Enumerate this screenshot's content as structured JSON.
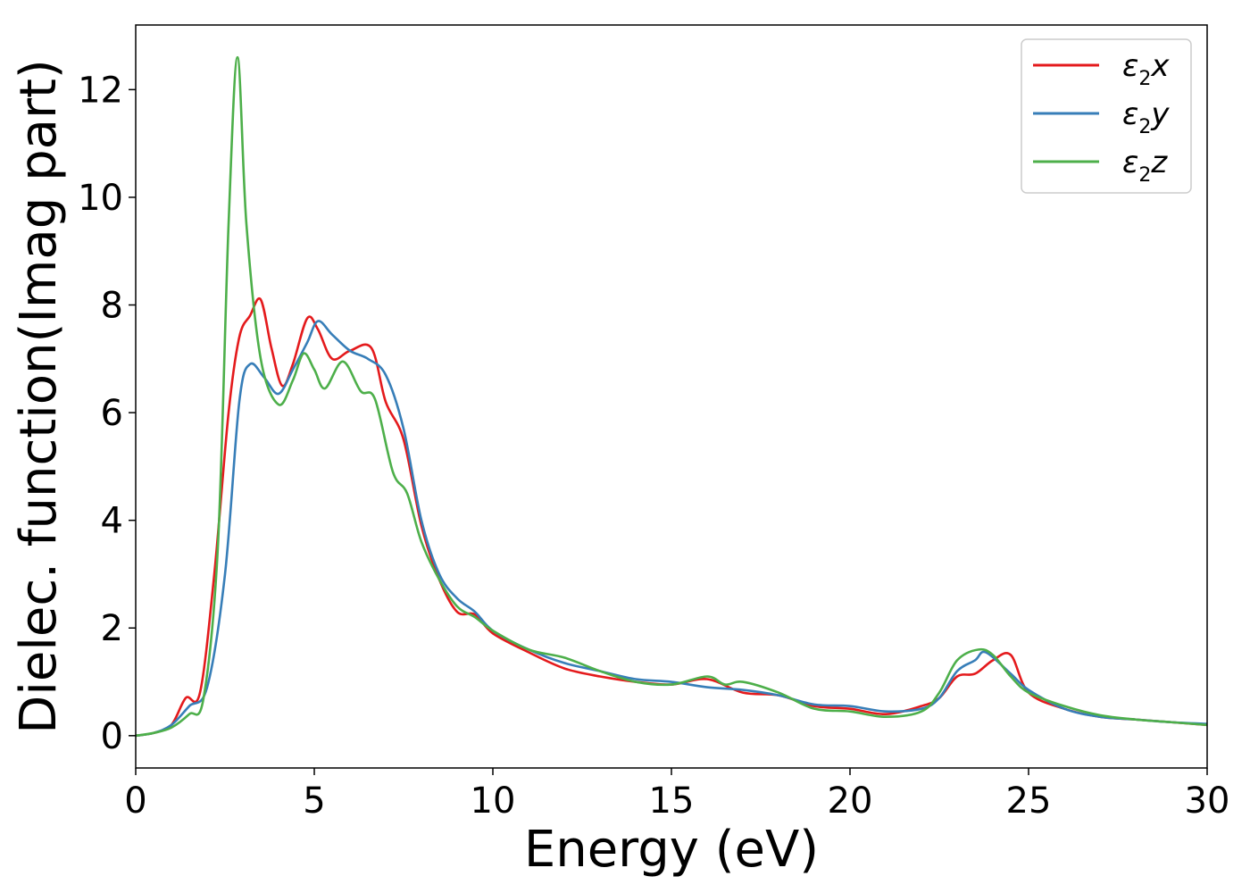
{
  "chart_data": {
    "type": "line",
    "title": "",
    "xlabel": "Energy (eV)",
    "ylabel": "Dielec. function(Imag part)",
    "xlim": [
      0,
      30
    ],
    "ylim": [
      -0.6,
      13.2
    ],
    "xticks": [
      0,
      5,
      10,
      15,
      20,
      25,
      30
    ],
    "yticks": [
      0,
      2,
      4,
      6,
      8,
      10,
      12
    ],
    "grid": false,
    "legend_position": "top-right",
    "series": [
      {
        "name": "ε2x",
        "symbol": "ε",
        "subscript": "2",
        "suffix": "x",
        "color": "#e41a1c",
        "points": [
          [
            0,
            0
          ],
          [
            0.5,
            0.05
          ],
          [
            1.0,
            0.2
          ],
          [
            1.4,
            0.7
          ],
          [
            1.8,
            0.8
          ],
          [
            2.2,
            3.0
          ],
          [
            2.6,
            6.0
          ],
          [
            2.9,
            7.4
          ],
          [
            3.2,
            7.8
          ],
          [
            3.5,
            8.1
          ],
          [
            3.8,
            7.2
          ],
          [
            4.1,
            6.5
          ],
          [
            4.4,
            6.9
          ],
          [
            4.8,
            7.75
          ],
          [
            5.1,
            7.55
          ],
          [
            5.5,
            7.0
          ],
          [
            6.0,
            7.15
          ],
          [
            6.6,
            7.2
          ],
          [
            7.0,
            6.2
          ],
          [
            7.5,
            5.5
          ],
          [
            8.0,
            3.9
          ],
          [
            8.5,
            2.9
          ],
          [
            9.0,
            2.3
          ],
          [
            9.5,
            2.25
          ],
          [
            10.0,
            1.9
          ],
          [
            11.0,
            1.55
          ],
          [
            12.0,
            1.25
          ],
          [
            13.0,
            1.1
          ],
          [
            14.0,
            1.0
          ],
          [
            15.0,
            0.95
          ],
          [
            16.0,
            1.05
          ],
          [
            17.0,
            0.8
          ],
          [
            18.0,
            0.75
          ],
          [
            19.0,
            0.55
          ],
          [
            20.0,
            0.5
          ],
          [
            21.0,
            0.4
          ],
          [
            22.0,
            0.55
          ],
          [
            22.5,
            0.7
          ],
          [
            23.0,
            1.1
          ],
          [
            23.5,
            1.15
          ],
          [
            24.0,
            1.4
          ],
          [
            24.5,
            1.5
          ],
          [
            25.0,
            0.8
          ],
          [
            26.0,
            0.5
          ],
          [
            27.0,
            0.35
          ],
          [
            28.0,
            0.3
          ],
          [
            29.0,
            0.25
          ],
          [
            30.0,
            0.2
          ]
        ]
      },
      {
        "name": "ε2y",
        "symbol": "ε",
        "subscript": "2",
        "suffix": "y",
        "color": "#377eb8",
        "points": [
          [
            0,
            0
          ],
          [
            0.5,
            0.05
          ],
          [
            1.0,
            0.2
          ],
          [
            1.5,
            0.55
          ],
          [
            2.0,
            0.9
          ],
          [
            2.5,
            3.0
          ],
          [
            2.9,
            6.2
          ],
          [
            3.2,
            6.9
          ],
          [
            3.6,
            6.65
          ],
          [
            4.0,
            6.35
          ],
          [
            4.4,
            6.8
          ],
          [
            4.8,
            7.3
          ],
          [
            5.1,
            7.7
          ],
          [
            5.5,
            7.45
          ],
          [
            6.0,
            7.15
          ],
          [
            6.5,
            7.0
          ],
          [
            7.0,
            6.7
          ],
          [
            7.5,
            5.7
          ],
          [
            8.0,
            4.0
          ],
          [
            8.5,
            3.0
          ],
          [
            9.0,
            2.55
          ],
          [
            9.5,
            2.3
          ],
          [
            10.0,
            1.95
          ],
          [
            11.0,
            1.6
          ],
          [
            12.0,
            1.35
          ],
          [
            13.0,
            1.2
          ],
          [
            14.0,
            1.05
          ],
          [
            15.0,
            1.0
          ],
          [
            16.0,
            0.9
          ],
          [
            17.0,
            0.85
          ],
          [
            18.0,
            0.75
          ],
          [
            19.0,
            0.58
          ],
          [
            20.0,
            0.55
          ],
          [
            21.0,
            0.45
          ],
          [
            22.0,
            0.5
          ],
          [
            22.5,
            0.7
          ],
          [
            23.0,
            1.2
          ],
          [
            23.5,
            1.4
          ],
          [
            23.8,
            1.55
          ],
          [
            24.5,
            1.15
          ],
          [
            25.0,
            0.85
          ],
          [
            26.0,
            0.5
          ],
          [
            27.0,
            0.35
          ],
          [
            28.0,
            0.3
          ],
          [
            29.0,
            0.25
          ],
          [
            30.0,
            0.22
          ]
        ]
      },
      {
        "name": "ε2z",
        "symbol": "ε",
        "subscript": "2",
        "suffix": "z",
        "color": "#4daf4a",
        "points": [
          [
            0,
            0
          ],
          [
            0.5,
            0.05
          ],
          [
            1.0,
            0.15
          ],
          [
            1.5,
            0.4
          ],
          [
            1.9,
            0.7
          ],
          [
            2.3,
            3.5
          ],
          [
            2.6,
            9.5
          ],
          [
            2.85,
            12.6
          ],
          [
            3.1,
            9.5
          ],
          [
            3.5,
            7.0
          ],
          [
            4.0,
            6.15
          ],
          [
            4.4,
            6.6
          ],
          [
            4.7,
            7.1
          ],
          [
            5.0,
            6.8
          ],
          [
            5.3,
            6.45
          ],
          [
            5.8,
            6.95
          ],
          [
            6.3,
            6.4
          ],
          [
            6.7,
            6.25
          ],
          [
            7.2,
            4.9
          ],
          [
            7.6,
            4.5
          ],
          [
            8.0,
            3.6
          ],
          [
            8.5,
            2.9
          ],
          [
            9.0,
            2.4
          ],
          [
            9.5,
            2.2
          ],
          [
            10.0,
            1.95
          ],
          [
            11.0,
            1.6
          ],
          [
            12.0,
            1.45
          ],
          [
            13.0,
            1.2
          ],
          [
            14.0,
            1.0
          ],
          [
            15.0,
            0.95
          ],
          [
            16.0,
            1.1
          ],
          [
            16.5,
            0.95
          ],
          [
            17.0,
            1.0
          ],
          [
            18.0,
            0.8
          ],
          [
            19.0,
            0.5
          ],
          [
            20.0,
            0.45
          ],
          [
            21.0,
            0.35
          ],
          [
            22.0,
            0.45
          ],
          [
            22.5,
            0.8
          ],
          [
            23.0,
            1.4
          ],
          [
            23.6,
            1.6
          ],
          [
            24.0,
            1.5
          ],
          [
            24.5,
            1.1
          ],
          [
            25.0,
            0.8
          ],
          [
            26.0,
            0.55
          ],
          [
            27.0,
            0.38
          ],
          [
            28.0,
            0.3
          ],
          [
            29.0,
            0.25
          ],
          [
            30.0,
            0.2
          ]
        ]
      }
    ]
  }
}
